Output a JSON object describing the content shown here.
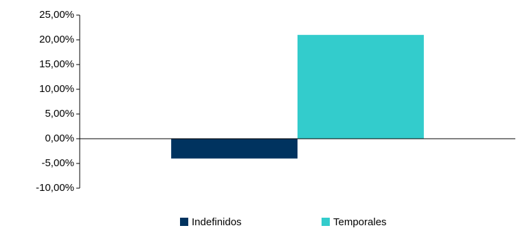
{
  "chart_data": {
    "type": "bar",
    "categories": [
      null
    ],
    "series": [
      {
        "name": "Indefinidos",
        "color": "#00335f",
        "values": [
          -4.0
        ]
      },
      {
        "name": "Temporales",
        "color": "#33cccc",
        "values": [
          21.0
        ]
      }
    ],
    "ylim": [
      -10,
      25
    ],
    "yticks": [
      {
        "value": -10,
        "label": "-10,00%"
      },
      {
        "value": -5,
        "label": "-5,00%"
      },
      {
        "value": 0,
        "label": "0,00%"
      },
      {
        "value": 5,
        "label": "5,00%"
      },
      {
        "value": 10,
        "label": "10,00%"
      },
      {
        "value": 15,
        "label": "15,00%"
      },
      {
        "value": 20,
        "label": "20,00%"
      },
      {
        "value": 25,
        "label": "25,00%"
      }
    ],
    "legend": "bottom"
  }
}
